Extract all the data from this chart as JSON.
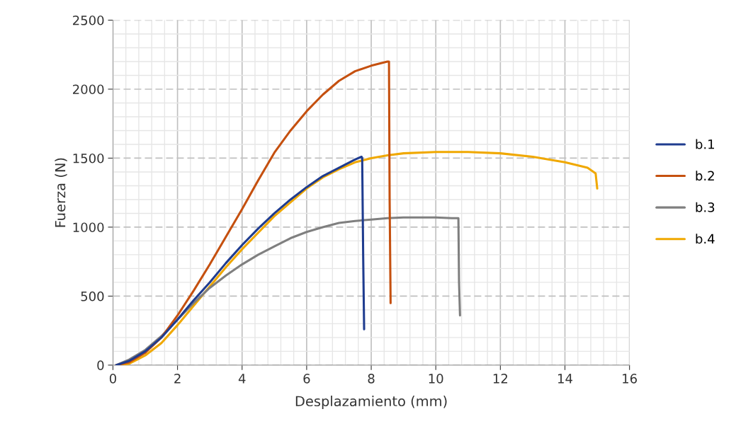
{
  "chart_data": {
    "type": "line",
    "xlabel": "Desplazamiento (mm)",
    "ylabel": "Fuerza (N)",
    "xlim": [
      0,
      16
    ],
    "xticks": [
      0,
      2,
      4,
      6,
      8,
      10,
      12,
      14,
      16
    ],
    "ylim": [
      0,
      2500
    ],
    "yticks": [
      0,
      500,
      1000,
      1500,
      2000,
      2500
    ],
    "grid": true,
    "legend": "right",
    "marker": "none",
    "line_style": "solid",
    "series": [
      {
        "name": "b.1",
        "color": "#1f3c8f",
        "x": [
          0.1,
          0.5,
          1,
          1.5,
          2,
          2.5,
          3,
          3.5,
          4,
          4.5,
          5,
          5.5,
          6,
          6.5,
          7,
          7.5,
          7.7,
          7.72,
          7.75,
          7.78
        ],
        "values": [
          0,
          30,
          100,
          200,
          330,
          470,
          600,
          740,
          870,
          990,
          1100,
          1200,
          1290,
          1370,
          1430,
          1490,
          1510,
          1500,
          800,
          260
        ]
      },
      {
        "name": "b.2",
        "color": "#c5500f",
        "x": [
          0.1,
          0.5,
          1,
          1.5,
          2,
          2.5,
          3,
          3.5,
          4,
          4.5,
          5,
          5.5,
          6,
          6.5,
          7,
          7.5,
          8,
          8.5,
          8.55,
          8.57,
          8.6
        ],
        "values": [
          0,
          20,
          90,
          200,
          360,
          540,
          730,
          930,
          1130,
          1340,
          1540,
          1700,
          1840,
          1960,
          2060,
          2130,
          2170,
          2200,
          2200,
          1200,
          450
        ]
      },
      {
        "name": "b.3",
        "color": "#7f7f7f",
        "x": [
          0.1,
          0.5,
          1,
          1.5,
          2,
          2.5,
          3,
          3.5,
          4,
          4.5,
          5,
          5.5,
          6,
          6.5,
          7,
          7.5,
          8,
          8.5,
          9,
          10,
          10.5,
          10.7,
          10.72,
          10.75
        ],
        "values": [
          0,
          40,
          110,
          210,
          330,
          450,
          560,
          650,
          730,
          800,
          860,
          920,
          965,
          1000,
          1030,
          1045,
          1055,
          1065,
          1070,
          1070,
          1065,
          1065,
          600,
          360
        ]
      },
      {
        "name": "b.4",
        "color": "#f0a800",
        "x": [
          0.2,
          0.5,
          1,
          1.5,
          2,
          2.5,
          3,
          3.5,
          4,
          4.5,
          5,
          5.5,
          6,
          6.5,
          7,
          7.5,
          8,
          8.5,
          9,
          10,
          11,
          12,
          13,
          14,
          14.7,
          14.95,
          15
        ],
        "values": [
          0,
          10,
          70,
          160,
          290,
          430,
          570,
          710,
          840,
          960,
          1080,
          1180,
          1280,
          1360,
          1420,
          1470,
          1500,
          1520,
          1535,
          1545,
          1545,
          1535,
          1510,
          1470,
          1430,
          1390,
          1280
        ]
      }
    ]
  }
}
